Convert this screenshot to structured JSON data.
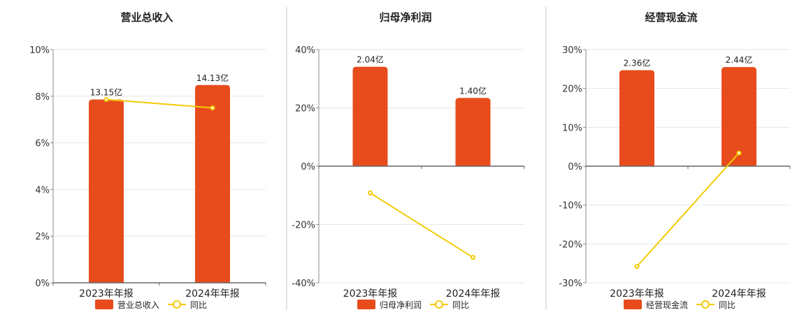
{
  "chart_data": [
    {
      "type": "bar",
      "title": "营业总收入",
      "categories": [
        "2023年年报",
        "2024年年报"
      ],
      "series": [
        {
          "name": "营业总收入",
          "kind": "bar",
          "axis": "left",
          "values": [
            7.86,
            8.48
          ],
          "labels": [
            "13.15亿",
            "14.13亿"
          ]
        },
        {
          "name": "同比",
          "kind": "line",
          "axis": "right",
          "values": [
            7.86,
            7.5
          ]
        }
      ],
      "ylim": [
        0,
        10
      ],
      "yticks": [
        0,
        2,
        4,
        6,
        8,
        10
      ],
      "ytick_labels": [
        "0%",
        "2%",
        "4%",
        "6%",
        "8%",
        "10%"
      ],
      "grid": true,
      "legend": "bottom",
      "colors": {
        "bar": "#e84c1c",
        "line": "#f2cb05"
      }
    },
    {
      "type": "bar",
      "title": "归母净利润",
      "categories": [
        "2023年年报",
        "2024年年报"
      ],
      "series": [
        {
          "name": "归母净利润",
          "kind": "bar",
          "axis": "left",
          "values": [
            34.1,
            23.4
          ],
          "labels": [
            "2.04亿",
            "1.40亿"
          ]
        },
        {
          "name": "同比",
          "kind": "line",
          "axis": "right",
          "values": [
            -9.2,
            -31.3
          ]
        }
      ],
      "ylim": [
        -40,
        40
      ],
      "yticks": [
        -40,
        -20,
        0,
        20,
        40
      ],
      "ytick_labels": [
        "-40%",
        "-20%",
        "0%",
        "20%",
        "40%"
      ],
      "grid": true,
      "legend": "bottom",
      "colors": {
        "bar": "#e84c1c",
        "line": "#f2cb05"
      }
    },
    {
      "type": "bar",
      "title": "经营现金流",
      "categories": [
        "2023年年报",
        "2024年年报"
      ],
      "series": [
        {
          "name": "经营现金流",
          "kind": "bar",
          "axis": "left",
          "values": [
            24.7,
            25.5
          ],
          "labels": [
            "2.36亿",
            "2.44亿"
          ]
        },
        {
          "name": "同比",
          "kind": "line",
          "axis": "right",
          "values": [
            -25.8,
            3.4
          ]
        }
      ],
      "ylim": [
        -30,
        30
      ],
      "yticks": [
        -30,
        -20,
        -10,
        0,
        10,
        20,
        30
      ],
      "ytick_labels": [
        "-30%",
        "-20%",
        "-10%",
        "0%",
        "10%",
        "20%",
        "30%"
      ],
      "grid": true,
      "legend": "bottom",
      "colors": {
        "bar": "#e84c1c",
        "line": "#f2cb05"
      }
    }
  ]
}
